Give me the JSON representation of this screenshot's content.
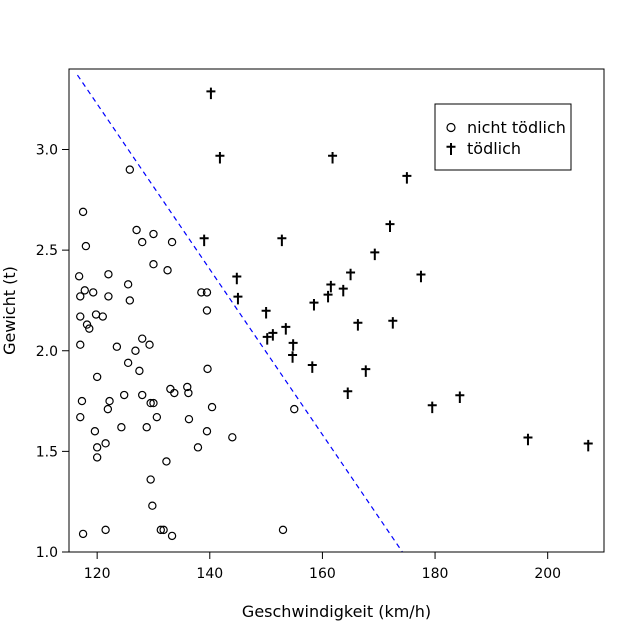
{
  "chart_data": {
    "type": "scatter",
    "title": "",
    "xlabel": "Geschwindigkeit (km/h)",
    "ylabel": "Gewicht (t)",
    "xlim": [
      115,
      210
    ],
    "ylim": [
      1.0,
      3.4
    ],
    "x_ticks": [
      120,
      140,
      160,
      180,
      200
    ],
    "y_ticks": [
      1.0,
      1.5,
      2.0,
      2.5,
      3.0
    ],
    "x_tick_labels": [
      "120",
      "140",
      "160",
      "180",
      "200"
    ],
    "y_tick_labels": [
      "1.0",
      "1.5",
      "2.0",
      "2.5",
      "3.0"
    ],
    "grid": false,
    "legend_position": "top-right",
    "reference_line": {
      "style": "dashed",
      "color": "#0000ff",
      "points": [
        [
          116.5,
          3.37
        ],
        [
          174.2,
          1.0
        ]
      ]
    },
    "series": [
      {
        "name": "nicht tödlich",
        "marker": "circle",
        "color": "#000000",
        "points": [
          [
            125.8,
            2.9
          ],
          [
            117.5,
            2.69
          ],
          [
            118.0,
            2.52
          ],
          [
            127.0,
            2.6
          ],
          [
            130.0,
            2.58
          ],
          [
            128.0,
            2.54
          ],
          [
            133.3,
            2.54
          ],
          [
            130.0,
            2.43
          ],
          [
            132.5,
            2.4
          ],
          [
            116.8,
            2.37
          ],
          [
            122.0,
            2.38
          ],
          [
            125.5,
            2.33
          ],
          [
            117.8,
            2.3
          ],
          [
            119.3,
            2.29
          ],
          [
            117.0,
            2.27
          ],
          [
            122.0,
            2.27
          ],
          [
            125.8,
            2.25
          ],
          [
            138.5,
            2.29
          ],
          [
            139.5,
            2.29
          ],
          [
            139.5,
            2.2
          ],
          [
            117.0,
            2.17
          ],
          [
            119.8,
            2.18
          ],
          [
            121.0,
            2.17
          ],
          [
            118.2,
            2.13
          ],
          [
            118.6,
            2.11
          ],
          [
            128.0,
            2.06
          ],
          [
            117.0,
            2.03
          ],
          [
            123.5,
            2.02
          ],
          [
            126.8,
            2.0
          ],
          [
            129.3,
            2.03
          ],
          [
            125.5,
            1.94
          ],
          [
            127.5,
            1.9
          ],
          [
            139.6,
            1.91
          ],
          [
            120.0,
            1.87
          ],
          [
            136.0,
            1.82
          ],
          [
            133.0,
            1.81
          ],
          [
            133.7,
            1.79
          ],
          [
            124.8,
            1.78
          ],
          [
            128.0,
            1.78
          ],
          [
            136.2,
            1.79
          ],
          [
            117.3,
            1.75
          ],
          [
            122.2,
            1.75
          ],
          [
            129.5,
            1.74
          ],
          [
            130.0,
            1.74
          ],
          [
            121.9,
            1.71
          ],
          [
            140.4,
            1.72
          ],
          [
            155.0,
            1.71
          ],
          [
            117.0,
            1.67
          ],
          [
            130.6,
            1.67
          ],
          [
            136.3,
            1.66
          ],
          [
            119.6,
            1.6
          ],
          [
            124.3,
            1.62
          ],
          [
            128.8,
            1.62
          ],
          [
            139.5,
            1.6
          ],
          [
            121.5,
            1.54
          ],
          [
            144.0,
            1.57
          ],
          [
            120.0,
            1.52
          ],
          [
            137.9,
            1.52
          ],
          [
            120.0,
            1.47
          ],
          [
            132.3,
            1.45
          ],
          [
            129.5,
            1.36
          ],
          [
            129.8,
            1.23
          ],
          [
            121.5,
            1.11
          ],
          [
            131.3,
            1.11
          ],
          [
            131.8,
            1.11
          ],
          [
            153.0,
            1.11
          ],
          [
            117.5,
            1.09
          ],
          [
            133.3,
            1.08
          ]
        ]
      },
      {
        "name": "tödlich",
        "marker": "dagger",
        "color": "#000000",
        "points": [
          [
            140.2,
            3.28
          ],
          [
            141.8,
            2.96
          ],
          [
            161.8,
            2.96
          ],
          [
            175.0,
            2.86
          ],
          [
            172.0,
            2.62
          ],
          [
            139.0,
            2.55
          ],
          [
            152.8,
            2.55
          ],
          [
            169.3,
            2.48
          ],
          [
            144.8,
            2.36
          ],
          [
            165.0,
            2.38
          ],
          [
            177.5,
            2.37
          ],
          [
            161.5,
            2.32
          ],
          [
            163.7,
            2.3
          ],
          [
            161.0,
            2.27
          ],
          [
            145.0,
            2.26
          ],
          [
            158.5,
            2.23
          ],
          [
            150.0,
            2.19
          ],
          [
            172.5,
            2.14
          ],
          [
            166.3,
            2.13
          ],
          [
            153.5,
            2.11
          ],
          [
            151.2,
            2.08
          ],
          [
            150.2,
            2.06
          ],
          [
            154.8,
            2.03
          ],
          [
            154.7,
            1.97
          ],
          [
            158.2,
            1.92
          ],
          [
            167.7,
            1.9
          ],
          [
            164.5,
            1.79
          ],
          [
            184.4,
            1.77
          ],
          [
            179.5,
            1.72
          ],
          [
            196.5,
            1.56
          ],
          [
            207.2,
            1.53
          ]
        ]
      }
    ]
  }
}
